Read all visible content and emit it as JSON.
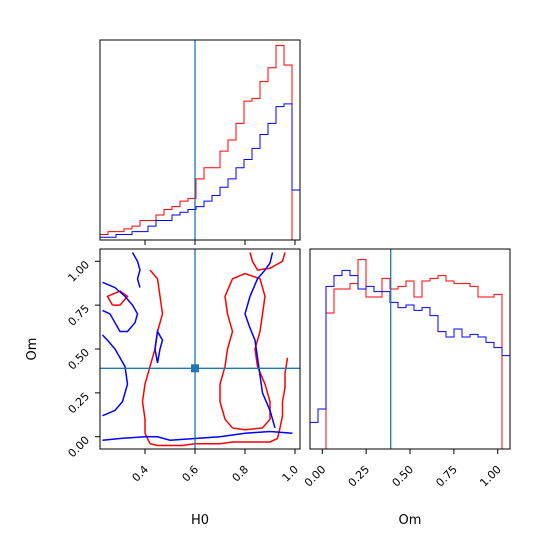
{
  "colors": {
    "series_a": "#ff0000",
    "series_b": "#0000ff",
    "truth": "#1f77b4"
  },
  "chart_data": [
    {
      "panel": "marginal-H0",
      "type": "histogram-step",
      "x_range": [
        0.22,
        1.02
      ],
      "bins": 25,
      "truth": 0.6,
      "series": [
        {
          "color": "red",
          "values": [
            0.02,
            0.03,
            0.03,
            0.04,
            0.05,
            0.07,
            0.07,
            0.09,
            0.11,
            0.12,
            0.14,
            0.15,
            0.22,
            0.26,
            0.26,
            0.32,
            0.36,
            0.42,
            0.5,
            0.51,
            0.57,
            0.62,
            0.7,
            0.63,
            0.0
          ]
        },
        {
          "color": "blue",
          "values": [
            0.01,
            0.01,
            0.02,
            0.02,
            0.03,
            0.03,
            0.05,
            0.07,
            0.07,
            0.09,
            0.1,
            0.11,
            0.12,
            0.14,
            0.16,
            0.19,
            0.22,
            0.26,
            0.29,
            0.33,
            0.38,
            0.42,
            0.48,
            0.49,
            0.18
          ]
        }
      ],
      "y_max": 0.72,
      "tick_values": [
        0.4,
        0.6,
        0.8,
        1.0
      ]
    },
    {
      "panel": "joint-H0-Om",
      "type": "contour",
      "x_range": [
        0.22,
        1.02
      ],
      "y_range": [
        -0.07,
        1.07
      ],
      "truth_point": [
        0.6,
        0.39
      ],
      "series": [
        {
          "color": "red",
          "level_lines": [
            [
              [
                0.42,
                -0.04
              ],
              [
                0.45,
                -0.05
              ],
              [
                0.5,
                -0.05
              ],
              [
                0.55,
                -0.05
              ],
              [
                0.6,
                -0.04
              ],
              [
                0.65,
                -0.04
              ],
              [
                0.7,
                -0.04
              ],
              [
                0.75,
                -0.03
              ],
              [
                0.8,
                -0.03
              ],
              [
                0.85,
                -0.03
              ],
              [
                0.9,
                -0.03
              ],
              [
                0.93,
                -0.01
              ],
              [
                0.94,
                0.05
              ],
              [
                0.95,
                0.12
              ],
              [
                0.95,
                0.2
              ],
              [
                0.96,
                0.28
              ],
              [
                0.96,
                0.36
              ],
              [
                0.97,
                0.45
              ]
            ],
            [
              [
                0.42,
                -0.04
              ],
              [
                0.4,
                0.02
              ],
              [
                0.4,
                0.1
              ],
              [
                0.39,
                0.2
              ],
              [
                0.4,
                0.3
              ],
              [
                0.42,
                0.4
              ],
              [
                0.44,
                0.5
              ],
              [
                0.45,
                0.6
              ],
              [
                0.47,
                0.7
              ],
              [
                0.46,
                0.8
              ],
              [
                0.45,
                0.9
              ],
              [
                0.42,
                0.95
              ]
            ],
            [
              [
                0.75,
                0.05
              ],
              [
                0.72,
                0.1
              ],
              [
                0.7,
                0.2
              ],
              [
                0.7,
                0.3
              ],
              [
                0.72,
                0.4
              ],
              [
                0.73,
                0.5
              ],
              [
                0.75,
                0.6
              ],
              [
                0.73,
                0.7
              ],
              [
                0.72,
                0.8
              ],
              [
                0.75,
                0.9
              ],
              [
                0.8,
                0.93
              ],
              [
                0.86,
                0.9
              ],
              [
                0.88,
                0.8
              ],
              [
                0.87,
                0.7
              ],
              [
                0.86,
                0.6
              ],
              [
                0.84,
                0.5
              ],
              [
                0.85,
                0.4
              ],
              [
                0.88,
                0.3
              ],
              [
                0.9,
                0.2
              ],
              [
                0.9,
                0.1
              ],
              [
                0.87,
                0.05
              ],
              [
                0.8,
                0.04
              ],
              [
                0.75,
                0.05
              ]
            ],
            [
              [
                0.82,
                1.05
              ],
              [
                0.83,
                1.0
              ],
              [
                0.85,
                0.95
              ],
              [
                0.9,
                0.96
              ],
              [
                0.95,
                1.0
              ],
              [
                0.96,
                1.05
              ]
            ],
            [
              [
                0.27,
                0.75
              ],
              [
                0.25,
                0.8
              ],
              [
                0.3,
                0.83
              ],
              [
                0.33,
                0.8
              ],
              [
                0.3,
                0.75
              ],
              [
                0.27,
                0.75
              ]
            ]
          ]
        },
        {
          "color": "blue",
          "level_lines": [
            [
              [
                0.23,
                -0.02
              ],
              [
                0.3,
                -0.01
              ],
              [
                0.4,
                0.0
              ],
              [
                0.45,
                0.0
              ],
              [
                0.5,
                -0.02
              ],
              [
                0.6,
                -0.01
              ],
              [
                0.7,
                0.0
              ],
              [
                0.8,
                0.02
              ],
              [
                0.9,
                0.03
              ],
              [
                0.99,
                0.02
              ]
            ],
            [
              [
                0.23,
                0.58
              ],
              [
                0.25,
                0.55
              ],
              [
                0.28,
                0.5
              ],
              [
                0.3,
                0.45
              ],
              [
                0.32,
                0.4
              ],
              [
                0.33,
                0.3
              ],
              [
                0.31,
                0.2
              ],
              [
                0.28,
                0.15
              ],
              [
                0.23,
                0.12
              ]
            ],
            [
              [
                0.23,
                0.88
              ],
              [
                0.28,
                0.85
              ],
              [
                0.32,
                0.8
              ],
              [
                0.35,
                0.75
              ],
              [
                0.37,
                0.7
              ],
              [
                0.36,
                0.65
              ],
              [
                0.33,
                0.6
              ],
              [
                0.3,
                0.6
              ],
              [
                0.28,
                0.65
              ],
              [
                0.26,
                0.7
              ],
              [
                0.23,
                0.72
              ]
            ],
            [
              [
                0.35,
                1.05
              ],
              [
                0.37,
                1.0
              ],
              [
                0.38,
                0.95
              ],
              [
                0.37,
                0.9
              ],
              [
                0.38,
                0.85
              ]
            ],
            [
              [
                0.92,
                0.05
              ],
              [
                0.9,
                0.15
              ],
              [
                0.87,
                0.25
              ],
              [
                0.86,
                0.35
              ],
              [
                0.85,
                0.45
              ],
              [
                0.84,
                0.55
              ],
              [
                0.82,
                0.62
              ],
              [
                0.8,
                0.7
              ],
              [
                0.82,
                0.8
              ],
              [
                0.85,
                0.9
              ],
              [
                0.88,
                0.95
              ],
              [
                0.9,
                0.99
              ],
              [
                0.91,
                1.05
              ]
            ],
            [
              [
                0.45,
                0.42
              ],
              [
                0.46,
                0.5
              ],
              [
                0.47,
                0.55
              ],
              [
                0.45,
                0.6
              ],
              [
                0.44,
                0.5
              ],
              [
                0.45,
                0.42
              ]
            ]
          ]
        }
      ],
      "x_tick_values": [
        0.4,
        0.6,
        0.8,
        1.0
      ],
      "y_tick_values": [
        0.0,
        0.25,
        0.5,
        0.75,
        1.0
      ]
    },
    {
      "panel": "marginal-Om",
      "type": "histogram-step",
      "x_range": [
        -0.07,
        1.07
      ],
      "bins": 25,
      "truth": 0.39,
      "series": [
        {
          "color": "red",
          "values": [
            0.0,
            0.0,
            0.51,
            0.6,
            0.6,
            0.62,
            0.71,
            0.57,
            0.57,
            0.64,
            0.6,
            0.61,
            0.63,
            0.57,
            0.63,
            0.64,
            0.65,
            0.63,
            0.62,
            0.62,
            0.61,
            0.57,
            0.57,
            0.58,
            0.0
          ]
        },
        {
          "color": "blue",
          "values": [
            0.1,
            0.15,
            0.61,
            0.65,
            0.67,
            0.65,
            0.6,
            0.61,
            0.59,
            0.59,
            0.55,
            0.53,
            0.54,
            0.52,
            0.53,
            0.5,
            0.44,
            0.42,
            0.45,
            0.42,
            0.43,
            0.42,
            0.4,
            0.38,
            0.35
          ]
        }
      ],
      "y_max": 0.75,
      "tick_values": [
        0.0,
        0.25,
        0.5,
        0.75,
        1.0
      ]
    }
  ],
  "labels": {
    "xlabel_h0": "H0",
    "xlabel_om": "Om",
    "ylabel_om": "Om",
    "h0_ticks": [
      "0.4",
      "0.6",
      "0.8",
      "1.0"
    ],
    "om_ticks": [
      "0.00",
      "0.25",
      "0.50",
      "0.75",
      "1.00"
    ]
  }
}
